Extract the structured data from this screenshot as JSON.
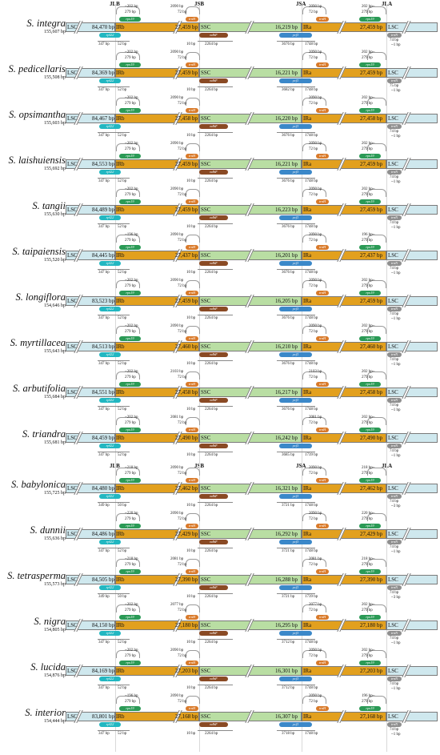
{
  "headers": [
    {
      "label": "JLB"
    },
    {
      "label": "JSB"
    },
    {
      "label": "JSA"
    },
    {
      "label": "JLA"
    },
    {
      "label": "JLB"
    },
    {
      "label": "JSB"
    },
    {
      "label": "JSA"
    },
    {
      "label": "JLA"
    }
  ],
  "region_labels": {
    "lsc": "LSC",
    "irb": "IRb",
    "ssc": "SSC",
    "ira": "IRa"
  },
  "gene_names": {
    "rps19": "rps19",
    "rpl22": "rpl22",
    "ndhF": "ndhF",
    "trnH": "trnH",
    "ycf1": "ycf1",
    "trnN": "trnN"
  },
  "rows": [
    {
      "name": "S. integra",
      "total": "155,607 bp",
      "lsc": "84,470 bp",
      "ir": "27,459 bp",
      "ssc": "16,219 bp",
      "rps19_top": "202 bp",
      "rps19_mid": "279 bp",
      "rpl22_a": "347 bp",
      "rpl22_b": "52 bp",
      "trnH_top": "2090 bp",
      "trnH_mid": "72 bp",
      "ndhF_a": "10 bp",
      "ndhF_b": "2264 bp",
      "ycf1_a": "3676 bp",
      "ycf1_b": "1748 bp",
      "ira_top": "2090 bp",
      "ira_mid": "72 bp",
      "jla_top": "202 bp",
      "jla_mid": "279 bp",
      "trnN_a": "74 bp",
      "trnN_b": "1 bp"
    },
    {
      "name": "S. pedicellaris",
      "total": "155,508 bp",
      "lsc": "84,369 bp",
      "ir": "27,459 bp",
      "ssc": "16,221 bp",
      "rps19_top": "202 bp",
      "rps19_mid": "279 bp",
      "rpl22_a": "347 bp",
      "rpl22_b": "52 bp",
      "trnH_top": "2090 bp",
      "trnH_mid": "72 bp",
      "ndhF_a": "10 bp",
      "ndhF_b": "2264 bp",
      "ycf1_a": "3682 bp",
      "ycf1_b": "1748 bp",
      "ira_top": "2090 bp",
      "ira_mid": "72 bp",
      "jla_top": "202 bp",
      "jla_mid": "279 bp",
      "trnN_a": "75 bp",
      "trnN_b": "1 bp"
    },
    {
      "name": "S. opsimantha",
      "total": "155,603 bp",
      "lsc": "84,467 bp",
      "ir": "27,458 bp",
      "ssc": "16,220 bp",
      "rps19_top": "202 bp",
      "rps19_mid": "279 bp",
      "rpl22_a": "347 bp",
      "rpl22_b": "52 bp",
      "trnH_top": "2090 bp",
      "trnH_mid": "72 bp",
      "ndhF_a": "10 bp",
      "ndhF_b": "2264 bp",
      "ycf1_a": "3676 bp",
      "ycf1_b": "1748 bp",
      "ira_top": "2090 bp",
      "ira_mid": "72 bp",
      "jla_top": "202 bp",
      "jla_mid": "279 bp",
      "trnN_a": "74 bp",
      "trnN_b": "1 bp"
    },
    {
      "name": "S. laishuiensis",
      "total": "155,692 bp",
      "lsc": "84,553 bp",
      "ir": "27,459 bp",
      "ssc": "16,221 bp",
      "rps19_top": "202 bp",
      "rps19_mid": "279 bp",
      "rpl22_a": "347 bp",
      "rpl22_b": "52 bp",
      "trnH_top": "2090 bp",
      "trnH_mid": "72 bp",
      "ndhF_a": "10 bp",
      "ndhF_b": "2264 bp",
      "ycf1_a": "3676 bp",
      "ycf1_b": "1748 bp",
      "ira_top": "2090 bp",
      "ira_mid": "72 bp",
      "jla_top": "202 bp",
      "jla_mid": "279 bp",
      "trnN_a": "74 bp",
      "trnN_b": "1 bp"
    },
    {
      "name": "S. tangii",
      "total": "155,630 bp",
      "lsc": "84,489 bp",
      "ir": "27,459 bp",
      "ssc": "16,223 bp",
      "rps19_top": "202 bp",
      "rps19_mid": "279 bp",
      "rpl22_a": "347 bp",
      "rpl22_b": "52 bp",
      "trnH_top": "2090 bp",
      "trnH_mid": "72 bp",
      "ndhF_a": "10 bp",
      "ndhF_b": "2264 bp",
      "ycf1_a": "3676 bp",
      "ycf1_b": "1748 bp",
      "ira_top": "2090 bp",
      "ira_mid": "72 bp",
      "jla_top": "202 bp",
      "jla_mid": "279 bp",
      "trnN_a": "74 bp",
      "trnN_b": "1 bp"
    },
    {
      "name": "S. taipaiensis",
      "total": "155,520 bp",
      "lsc": "84,445 bp",
      "ir": "27,437 bp",
      "ssc": "16,201 bp",
      "rps19_top": "196 bp",
      "rps19_mid": "279 bp",
      "rpl22_a": "347 bp",
      "rpl22_b": "52 bp",
      "trnH_top": "2090 bp",
      "trnH_mid": "72 bp",
      "ndhF_a": "10 bp",
      "ndhF_b": "2264 bp",
      "ycf1_a": "3676 bp",
      "ycf1_b": "1748 bp",
      "ira_top": "2090 bp",
      "ira_mid": "72 bp",
      "jla_top": "196 bp",
      "jla_mid": "279 bp",
      "trnN_a": "74 bp",
      "trnN_b": "1 bp"
    },
    {
      "name": "S. longiflora",
      "total": "154,646 bp",
      "lsc": "83,523 bp",
      "ir": "27,459 bp",
      "ssc": "16,205 bp",
      "rps19_top": "202 bp",
      "rps19_mid": "279 bp",
      "rpl22_a": "347 bp",
      "rpl22_b": "52 bp",
      "trnH_top": "2090 bp",
      "trnH_mid": "72 bp",
      "ndhF_a": "10 bp",
      "ndhF_b": "2264 bp",
      "ycf1_a": "3676 bp",
      "ycf1_b": "1748 bp",
      "ira_top": "2090 bp",
      "ira_mid": "72 bp",
      "jla_top": "202 bp",
      "jla_mid": "279 bp",
      "trnN_a": "74 bp",
      "trnN_b": "1 bp"
    },
    {
      "name": "S. myrtillacea",
      "total": "155,643 bp",
      "lsc": "84,513 bp",
      "ir": "27,460 bp",
      "ssc": "16,210 bp",
      "rps19_top": "202 bp",
      "rps19_mid": "279 bp",
      "rpl22_a": "347 bp",
      "rpl22_b": "52 bp",
      "trnH_top": "2090 bp",
      "trnH_mid": "72 bp",
      "ndhF_a": "10 bp",
      "ndhF_b": "2264 bp",
      "ycf1_a": "3676 bp",
      "ycf1_b": "1748 bp",
      "ira_top": "2090 bp",
      "ira_mid": "72 bp",
      "jla_top": "202 bp",
      "jla_mid": "279 bp",
      "trnN_a": "74 bp",
      "trnN_b": "1 bp"
    },
    {
      "name": "S. arbutifolia",
      "total": "155,684 bp",
      "lsc": "84,551 bp",
      "ir": "27,458 bp",
      "ssc": "16,217 bp",
      "rps19_top": "202 bp",
      "rps19_mid": "279 bp",
      "rpl22_a": "347 bp",
      "rpl22_b": "52 bp",
      "trnH_top": "2103 bp",
      "trnH_mid": "72 bp",
      "ndhF_a": "10 bp",
      "ndhF_b": "2264 bp",
      "ycf1_a": "3676 bp",
      "ycf1_b": "1748 bp",
      "ira_top": "2103 bp",
      "ira_mid": "72 bp",
      "jla_top": "202 bp",
      "jla_mid": "279 bp",
      "trnN_a": "74 bp",
      "trnN_b": "1 bp"
    },
    {
      "name": "S. triandra",
      "total": "155,681 bp",
      "lsc": "84,459 bp",
      "ir": "27,490 bp",
      "ssc": "16,242 bp",
      "rps19_top": "202 bp",
      "rps19_mid": "279 bp",
      "rpl22_a": "347 bp",
      "rpl22_b": "52 bp",
      "trnH_top": "2081 bp",
      "trnH_mid": "72 bp",
      "ndhF_a": "10 bp",
      "ndhF_b": "2264 bp",
      "ycf1_a": "3685 bp",
      "ycf1_b": "1739 bp",
      "ira_top": "2081 bp",
      "ira_mid": "72 bp",
      "jla_top": "202 bp",
      "jla_mid": "279 bp",
      "trnN_a": "74 bp",
      "trnN_b": "1 bp"
    },
    {
      "name": "S. babylonica",
      "total": "155,725 bp",
      "lsc": "84,480 bp",
      "ir": "27,462 bp",
      "ssc": "16,321 bp",
      "rps19_top": "218 bp",
      "rps19_mid": "279 bp",
      "rpl22_a": "349 bp",
      "rpl22_b": "50 bp",
      "trnH_top": "2090 bp",
      "trnH_mid": "72 bp",
      "ndhF_a": "10 bp",
      "ndhF_b": "2264 bp",
      "ycf1_a": "3721 bp",
      "ycf1_b": "1748 bp",
      "ira_top": "2090 bp",
      "ira_mid": "72 bp",
      "jla_top": "218 bp",
      "jla_mid": "279 bp",
      "trnN_a": "74 bp",
      "trnN_b": "3 bp"
    },
    {
      "name": "S. dunnii",
      "total": "155,636 bp",
      "lsc": "84,486 bp",
      "ir": "27,429 bp",
      "ssc": "16,292 bp",
      "rps19_top": "220 bp",
      "rps19_mid": "279 bp",
      "rpl22_a": "347 bp",
      "rpl22_b": "52 bp",
      "trnH_top": "2090 bp",
      "trnH_mid": "72 bp",
      "ndhF_a": "10 bp",
      "ndhF_b": "2264 bp",
      "ycf1_a": "3721 bp",
      "ycf1_b": "1748 bp",
      "ira_top": "2090 bp",
      "ira_mid": "72 bp",
      "jla_top": "220 bp",
      "jla_mid": "279 bp",
      "trnN_a": "74 bp",
      "trnN_b": "1 bp"
    },
    {
      "name": "S. tetrasperma",
      "total": "155,573 bp",
      "lsc": "84,505 bp",
      "ir": "27,390 bp",
      "ssc": "16,288 bp",
      "rps19_top": "218 bp",
      "rps19_mid": "279 bp",
      "rpl22_a": "349 bp",
      "rpl22_b": "50 bp",
      "trnH_top": "2081 bp",
      "trnH_mid": "72 bp",
      "ndhF_a": "10 bp",
      "ndhF_b": "2264 bp",
      "ycf1_a": "3721 bp",
      "ycf1_b": "1739 bp",
      "ira_top": "2081 bp",
      "ira_mid": "72 bp",
      "jla_top": "218 bp",
      "jla_mid": "279 bp",
      "trnN_a": "74 bp",
      "trnN_b": "3 bp"
    },
    {
      "name": "S. nigra",
      "total": "154,805 bp",
      "lsc": "84,150 bp",
      "ir": "27,180 bp",
      "ssc": "16,295 bp",
      "rps19_top": "202 bp",
      "rps19_mid": "279 bp",
      "rpl22_a": "347 bp",
      "rpl22_b": "52 bp",
      "trnH_top": "2077 bp",
      "trnH_mid": "72 bp",
      "ndhF_a": "10 bp",
      "ndhF_b": "2264 bp",
      "ycf1_a": "3712 bp",
      "ycf1_b": "1748 bp",
      "ira_top": "2077 bp",
      "ira_mid": "72 bp",
      "jla_top": "202 bp",
      "jla_mid": "279 bp",
      "trnN_a": "74 bp",
      "trnN_b": "1 bp"
    },
    {
      "name": "S. lucida",
      "total": "154,876 bp",
      "lsc": "84,169 bp",
      "ir": "27,203 bp",
      "ssc": "16,301 bp",
      "rps19_top": "202 bp",
      "rps19_mid": "279 bp",
      "rpl22_a": "347 bp",
      "rpl22_b": "52 bp",
      "trnH_top": "2090 bp",
      "trnH_mid": "72 bp",
      "ndhF_a": "10 bp",
      "ndhF_b": "2264 bp",
      "ycf1_a": "3712 bp",
      "ycf1_b": "1748 bp",
      "ira_top": "2090 bp",
      "ira_mid": "72 bp",
      "jla_top": "202 bp",
      "jla_mid": "279 bp",
      "trnN_a": "74 bp",
      "trnN_b": "1 bp"
    },
    {
      "name": "S. interior",
      "total": "154,444 bp",
      "lsc": "83,801 bp",
      "ir": "27,168 bp",
      "ssc": "16,307 bp",
      "rps19_top": "196 bp",
      "rps19_mid": "279 bp",
      "rpl22_a": "347 bp",
      "rpl22_b": "52 bp",
      "trnH_top": "2090 bp",
      "trnH_mid": "72 bp",
      "ndhF_a": "10 bp",
      "ndhF_b": "2264 bp",
      "ycf1_a": "3718 bp",
      "ycf1_b": "1748 bp",
      "ira_top": "2090 bp",
      "ira_mid": "72 bp",
      "jla_top": "196 bp",
      "jla_mid": "279 bp",
      "trnN_a": "74 bp",
      "trnN_b": "1 bp"
    }
  ]
}
